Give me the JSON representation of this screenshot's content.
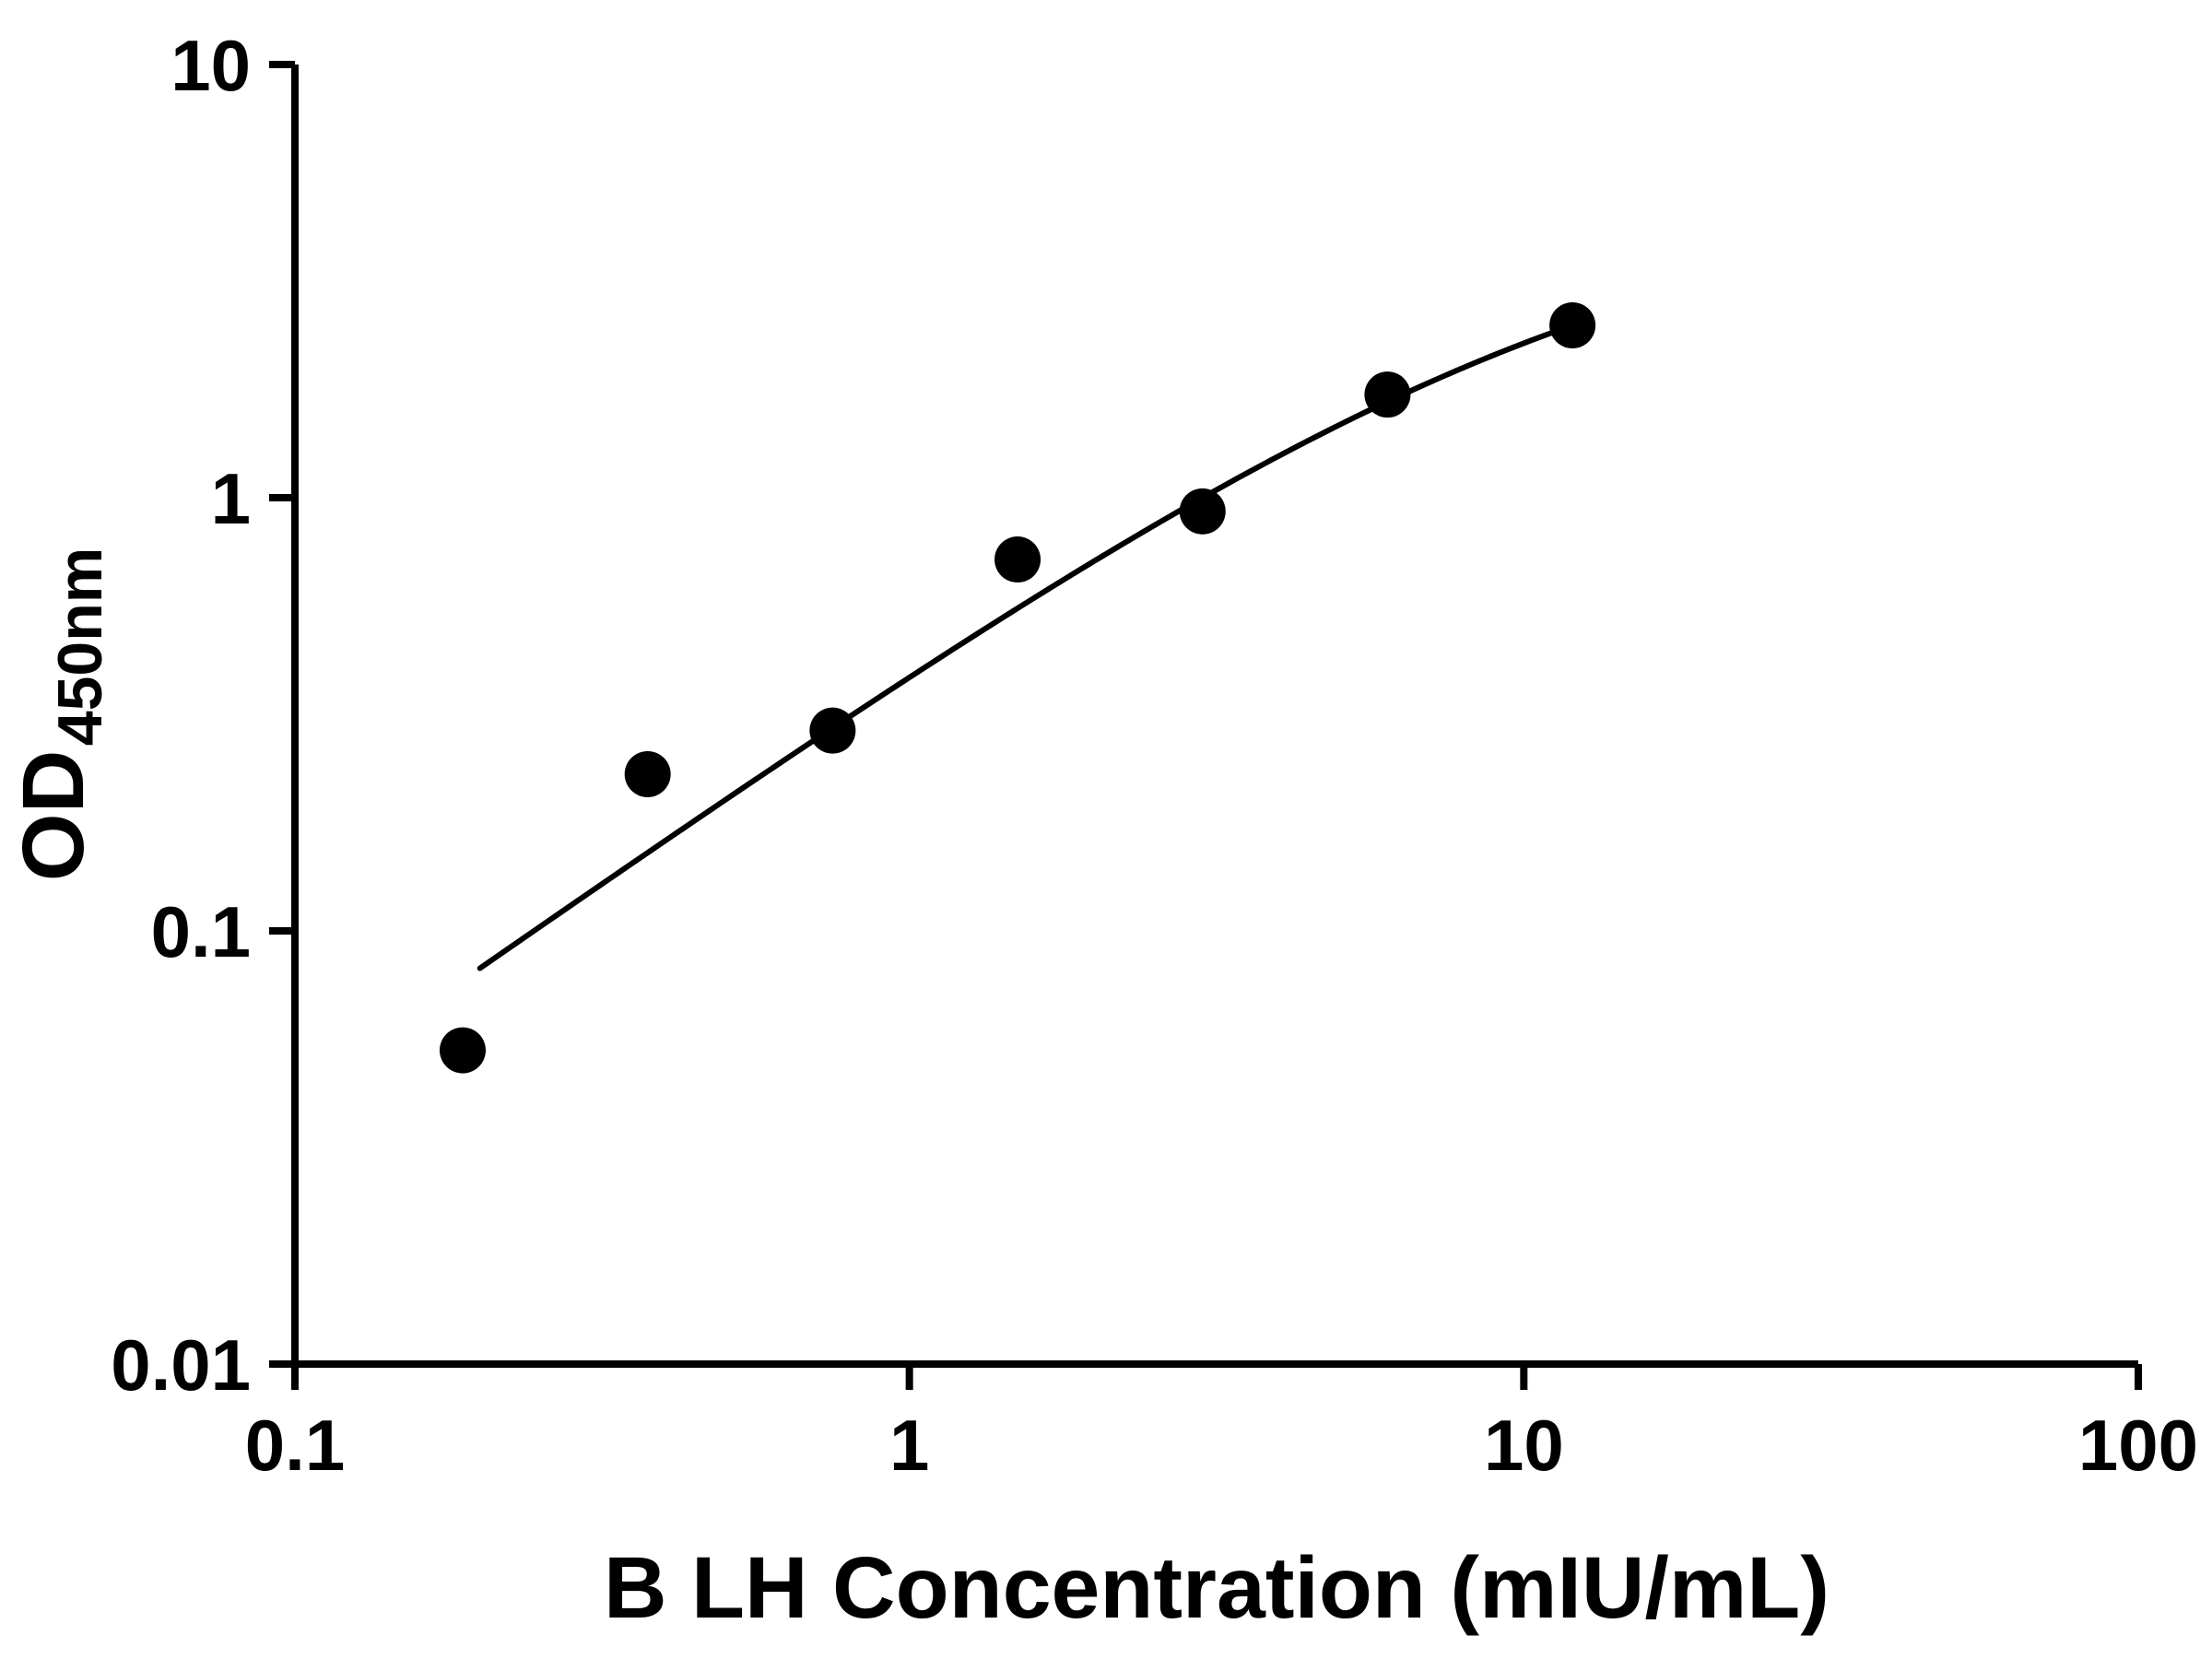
{
  "chart_data": {
    "type": "scatter",
    "title": "",
    "xlabel": "B LH Concentration (mIU/mL)",
    "ylabel": "OD",
    "ylabel_subscript": "450nm",
    "x_scale": "log",
    "y_scale": "log",
    "xlim": [
      0.1,
      100
    ],
    "ylim": [
      0.01,
      10
    ],
    "x_ticks": [
      0.1,
      1,
      10,
      100
    ],
    "x_tick_labels": [
      "0.1",
      "1",
      "10",
      "100"
    ],
    "y_ticks": [
      0.01,
      0.1,
      1,
      10
    ],
    "y_tick_labels": [
      "0.01",
      "0.1",
      "1",
      "10"
    ],
    "grid": false,
    "legend": "none",
    "marker": {
      "shape": "circle",
      "color": "#000000"
    },
    "points": [
      {
        "x": 0.1875,
        "y": 0.053
      },
      {
        "x": 0.375,
        "y": 0.23
      },
      {
        "x": 0.75,
        "y": 0.29
      },
      {
        "x": 1.5,
        "y": 0.72
      },
      {
        "x": 3,
        "y": 0.93
      },
      {
        "x": 6,
        "y": 1.73
      },
      {
        "x": 12,
        "y": 2.5
      }
    ],
    "fit_curve": {
      "type": "saturation-binding",
      "equation": "y = d*x / (x + c)",
      "params": {
        "d": 5,
        "c": 12
      },
      "x_range": [
        0.2,
        12
      ]
    },
    "colors": {
      "points": "#000000",
      "curve": "#000000",
      "axis": "#000000",
      "background": "#ffffff"
    }
  }
}
